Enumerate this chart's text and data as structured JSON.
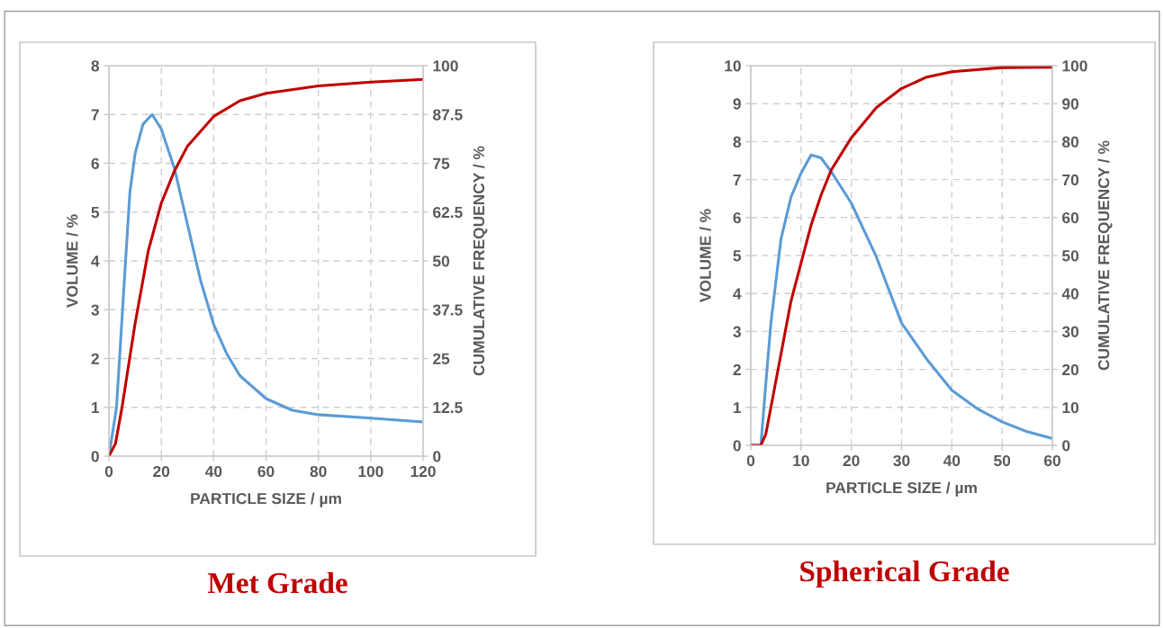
{
  "chart_data": [
    {
      "type": "line",
      "title": "Met Grade",
      "xlabel": "PARTICLE SIZE / µm",
      "ylabel": "VOLUME / %",
      "y2label": "CUMULATIVE FREQUENCY / %",
      "xlim": [
        0,
        120
      ],
      "xticks": [
        0,
        20,
        40,
        60,
        80,
        100,
        120
      ],
      "ylim": [
        0,
        8
      ],
      "yticks": [
        0,
        1,
        2,
        3,
        4,
        5,
        6,
        7,
        8
      ],
      "y2lim": [
        0,
        100
      ],
      "y2ticks": [
        0,
        12.5,
        25,
        37.5,
        50,
        62.5,
        75,
        87.5,
        100
      ],
      "grid": true,
      "marker": "none",
      "line_style": "solid",
      "series": [
        {
          "color": "#5b9bd5",
          "x": [
            0,
            2.9,
            6.3,
            8,
            10,
            13,
            16.5,
            20,
            25,
            30,
            35,
            40,
            45,
            50,
            60,
            70,
            80,
            100,
            120
          ],
          "values": [
            0,
            1.0,
            3.95,
            5.4,
            6.2,
            6.8,
            7.0,
            6.7,
            5.9,
            4.75,
            3.6,
            2.7,
            2.1,
            1.65,
            1.18,
            0.94,
            0.85,
            0.78,
            0.7
          ]
        },
        {
          "color": "#c00000",
          "axis": "y2",
          "x": [
            0,
            2.5,
            5,
            10,
            15,
            20,
            25,
            30,
            40,
            50,
            60,
            80,
            100,
            120
          ],
          "values": [
            0,
            3.2,
            12.5,
            34,
            52.5,
            64.8,
            73,
            79.4,
            87,
            91,
            92.9,
            94.8,
            95.8,
            96.5
          ]
        }
      ]
    },
    {
      "type": "line",
      "title": "Spherical Grade",
      "xlabel": "PARTICLE SIZE / µm",
      "ylabel": "VOLUME / %",
      "y2label": "CUMULATIVE FREQUENCY / %",
      "xlim": [
        0,
        60
      ],
      "xticks": [
        0,
        10,
        20,
        30,
        40,
        50,
        60
      ],
      "ylim": [
        0,
        10
      ],
      "yticks": [
        0,
        1,
        2,
        3,
        4,
        5,
        6,
        7,
        8,
        9,
        10
      ],
      "y2lim": [
        0,
        100
      ],
      "y2ticks": [
        0,
        10,
        20,
        30,
        40,
        50,
        60,
        70,
        80,
        90,
        100
      ],
      "grid": true,
      "marker": "none",
      "line_style": "solid",
      "series": [
        {
          "color": "#5b9bd5",
          "x": [
            0,
            2,
            3,
            4,
            6,
            8,
            10,
            12,
            14,
            16,
            20,
            25,
            30,
            35,
            40,
            45,
            50,
            55,
            60
          ],
          "values": [
            0,
            0,
            1.64,
            3.22,
            5.43,
            6.54,
            7.17,
            7.65,
            7.57,
            7.21,
            6.38,
            4.96,
            3.22,
            2.27,
            1.45,
            0.97,
            0.62,
            0.36,
            0.18
          ]
        },
        {
          "color": "#c00000",
          "axis": "y2",
          "x": [
            0,
            2,
            3,
            4,
            6,
            8,
            10,
            12,
            14,
            16,
            20,
            25,
            30,
            35,
            40,
            50,
            60
          ],
          "values": [
            0,
            0,
            3,
            10,
            24,
            38,
            48,
            58,
            66,
            72.5,
            81,
            89,
            94,
            97,
            98.4,
            99.5,
            99.6
          ]
        }
      ]
    }
  ]
}
